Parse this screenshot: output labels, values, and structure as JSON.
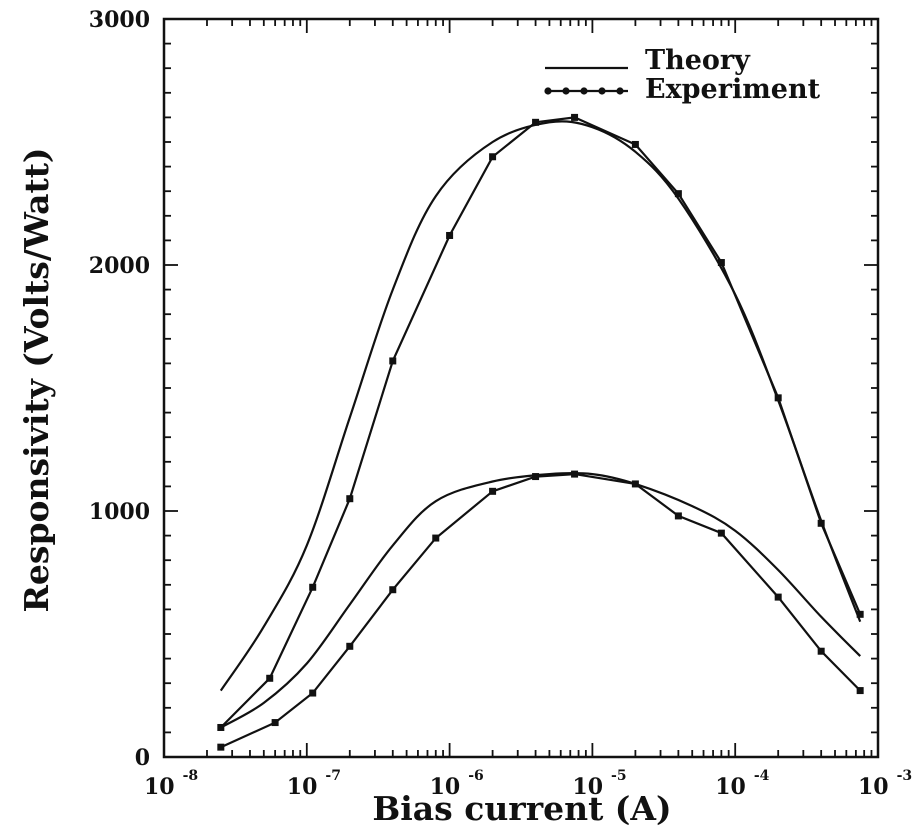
{
  "chart_data": {
    "type": "line",
    "xscale": "log",
    "xlabel": "Bias current (A)",
    "ylabel": "Responsivity (Volts/Watt)",
    "xlim": [
      1e-08,
      0.001
    ],
    "ylim": [
      0,
      3000
    ],
    "x_ticks": [
      {
        "base": "10",
        "exp": "-8"
      },
      {
        "base": "10",
        "exp": "-7"
      },
      {
        "base": "10",
        "exp": "-6"
      },
      {
        "base": "10",
        "exp": "-5"
      },
      {
        "base": "10",
        "exp": "-4"
      },
      {
        "base": "10",
        "exp": "-3"
      }
    ],
    "y_ticks": [
      "0",
      "1000",
      "2000",
      "3000"
    ],
    "legend": {
      "position": "top-right",
      "entries": [
        {
          "label": "Theory",
          "style": "line"
        },
        {
          "label": "Experiment",
          "style": "line-markers"
        }
      ]
    },
    "series": [
      {
        "kind": "theory",
        "x": [
          2.5e-08,
          5e-08,
          1e-07,
          2e-07,
          4e-07,
          8e-07,
          2e-06,
          5e-06,
          1e-05,
          2e-05,
          4e-05,
          0.0001,
          0.0002,
          0.0004,
          0.00075
        ],
        "y": [
          270,
          530,
          860,
          1380,
          1900,
          2280,
          2500,
          2580,
          2560,
          2460,
          2270,
          1880,
          1450,
          960,
          550
        ]
      },
      {
        "kind": "experiment",
        "x": [
          2.5e-08,
          5.5e-08,
          1.1e-07,
          2e-07,
          4e-07,
          1e-06,
          2e-06,
          4e-06,
          7.5e-06,
          2e-05,
          4e-05,
          8e-05,
          0.0002,
          0.0004,
          0.00075
        ],
        "y": [
          120,
          320,
          690,
          1050,
          1610,
          2120,
          2440,
          2580,
          2600,
          2490,
          2290,
          2010,
          1460,
          950,
          580
        ]
      },
      {
        "kind": "theory",
        "x": [
          2.5e-08,
          5e-08,
          1e-07,
          2e-07,
          4e-07,
          8e-07,
          2e-06,
          5e-06,
          1e-05,
          2e-05,
          5e-05,
          0.0001,
          0.0002,
          0.0004,
          0.00075
        ],
        "y": [
          120,
          220,
          380,
          620,
          860,
          1040,
          1120,
          1150,
          1150,
          1110,
          1020,
          920,
          760,
          570,
          410
        ]
      },
      {
        "kind": "experiment",
        "x": [
          2.5e-08,
          6e-08,
          1.1e-07,
          2e-07,
          4e-07,
          8e-07,
          2e-06,
          4e-06,
          7.5e-06,
          2e-05,
          4e-05,
          8e-05,
          0.0002,
          0.0004,
          0.00075
        ],
        "y": [
          40,
          140,
          260,
          450,
          680,
          890,
          1080,
          1140,
          1150,
          1110,
          980,
          910,
          650,
          430,
          270
        ]
      }
    ]
  }
}
